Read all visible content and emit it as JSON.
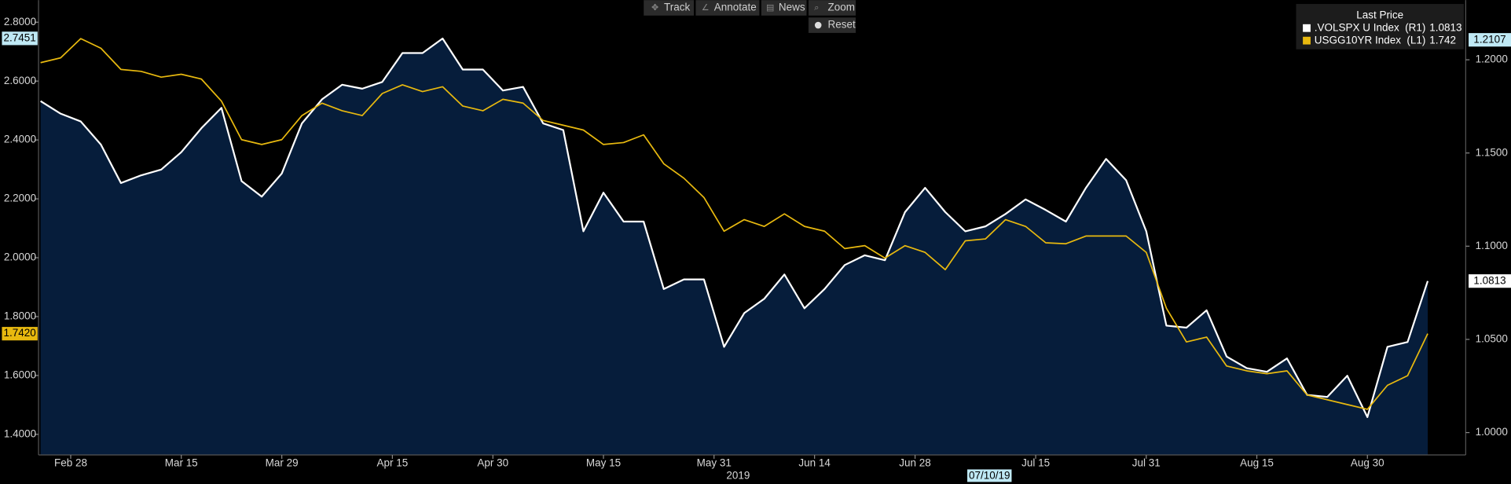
{
  "toolbar": {
    "buttons": [
      "Track",
      "Annotate",
      "News",
      "Zoom"
    ],
    "reset": "Reset"
  },
  "chart_data": {
    "type": "line",
    "legend_title": "Last Price",
    "series": [
      {
        "name": ".VOLSPX U Index",
        "axis_tag": "(R1)",
        "axis": "y2",
        "color": "#ffffff",
        "fill": "#061d3b",
        "values": [
          1.1778,
          1.1711,
          1.1669,
          1.1545,
          1.1339,
          1.138,
          1.1411,
          1.1504,
          1.1633,
          1.1742,
          1.1349,
          1.1266,
          1.139,
          1.1659,
          1.1788,
          1.1866,
          1.1845,
          1.1881,
          1.2036,
          1.2036,
          1.2114,
          1.1948,
          1.1948,
          1.1835,
          1.1855,
          1.1659,
          1.1623,
          1.108,
          1.1287,
          1.1132,
          1.1132,
          1.077,
          1.0822,
          1.0822,
          1.046,
          1.0641,
          1.0718,
          1.0848,
          1.0667,
          1.077,
          1.0899,
          1.0951,
          1.0925,
          1.1183,
          1.1313,
          1.1183,
          1.108,
          1.1106,
          1.1173,
          1.1251,
          1.1194,
          1.1132,
          1.1313,
          1.1468,
          1.1354,
          1.108,
          1.0574,
          1.0563,
          1.0656,
          1.0408,
          1.0346,
          1.0326,
          1.0398,
          1.0202,
          1.0191,
          1.0305,
          1.0083,
          1.046,
          1.0486,
          1.0813
        ]
      },
      {
        "name": "USGG10YR Index",
        "axis_tag": "(L1)",
        "axis": "y",
        "color": "#e8b90f",
        "values": [
          2.6626,
          2.679,
          2.7444,
          2.7117,
          2.6397,
          2.6332,
          2.6135,
          2.6234,
          2.607,
          2.5318,
          2.4009,
          2.3846,
          2.4009,
          2.4827,
          2.5252,
          2.4991,
          2.4827,
          2.5579,
          2.5874,
          2.5645,
          2.5808,
          2.5154,
          2.4991,
          2.5383,
          2.5252,
          2.4663,
          2.45,
          2.4336,
          2.3846,
          2.3911,
          2.4173,
          2.3191,
          2.2701,
          2.2046,
          2.0901,
          2.1294,
          2.1065,
          2.149,
          2.1065,
          2.0901,
          2.0313,
          2.0411,
          1.9986,
          2.0411,
          2.0182,
          1.9593,
          2.0574,
          2.064,
          2.1294,
          2.1065,
          2.0509,
          2.0476,
          2.0738,
          2.0738,
          2.0738,
          2.0182,
          1.8285,
          1.714,
          1.7303,
          1.6322,
          1.6158,
          1.606,
          1.6158,
          1.534,
          1.5177,
          1.5013,
          1.485,
          1.5668,
          1.5995,
          1.742
        ]
      }
    ],
    "xlim": [
      -0.1,
      69.5
    ],
    "xticks": [
      {
        "value": 1.5,
        "label": "Feb 28"
      },
      {
        "value": 7,
        "label": "Mar 15"
      },
      {
        "value": 12,
        "label": "Mar 29"
      },
      {
        "value": 17.5,
        "label": "Apr 15"
      },
      {
        "value": 22.5,
        "label": "Apr 30"
      },
      {
        "value": 28,
        "label": "May 15"
      },
      {
        "value": 33.5,
        "label": "May 31"
      },
      {
        "value": 38.5,
        "label": "Jun 14"
      },
      {
        "value": 43.5,
        "label": "Jun 28"
      },
      {
        "value": 49.5,
        "label": "Jul 15"
      },
      {
        "value": 55,
        "label": "Jul 31"
      },
      {
        "value": 60.5,
        "label": "Aug 15"
      },
      {
        "value": 66,
        "label": "Aug 30"
      }
    ],
    "x_year": "2019",
    "x_marker": {
      "value": 47.2,
      "label": "07/10/19"
    },
    "ylim": [
      1.33,
      2.875
    ],
    "yticks": [
      {
        "value": 1.4,
        "label": "1.4000"
      },
      {
        "value": 1.6,
        "label": "1.6000"
      },
      {
        "value": 1.8,
        "label": "1.8000"
      },
      {
        "value": 2.0,
        "label": "2.0000"
      },
      {
        "value": 2.2,
        "label": "2.2000"
      },
      {
        "value": 2.4,
        "label": "2.4000"
      },
      {
        "value": 2.6,
        "label": "2.6000"
      },
      {
        "value": 2.8,
        "label": "2.8000"
      }
    ],
    "y2lim": [
      0.988,
      1.232
    ],
    "y2ticks": [
      {
        "value": 1.0,
        "label": "1.0000"
      },
      {
        "value": 1.05,
        "label": "1.0500"
      },
      {
        "value": 1.1,
        "label": "1.1000"
      },
      {
        "value": 1.15,
        "label": "1.1500"
      },
      {
        "value": 1.2,
        "label": "1.2000"
      }
    ],
    "axis_markers": [
      {
        "axis": "y",
        "value": 2.7451,
        "color": "#bfe9f5"
      },
      {
        "axis": "y",
        "value": {
          "value": 1.742,
          "label": "1.7420"
        },
        "color": "#e8b90f"
      },
      {
        "axis": "y2",
        "value": 1.2107,
        "color": "#bfe9f5"
      },
      {
        "axis": "y2",
        "value": 1.0813,
        "color": "#ffffff"
      }
    ]
  }
}
